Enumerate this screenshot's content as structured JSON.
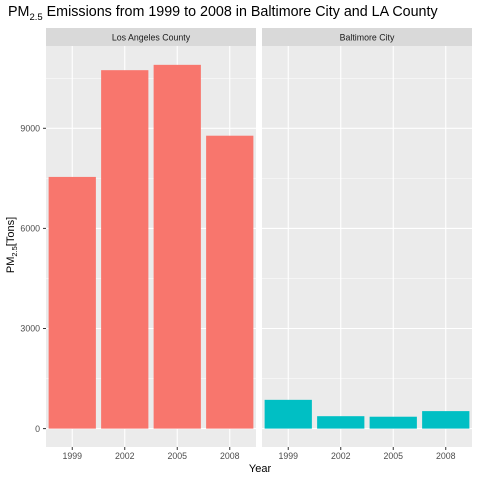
{
  "chart_data": {
    "type": "bar",
    "title": "PM2.5 Emissions from 1999 to 2008 in Baltimore City and LA County",
    "title_parts": {
      "base": "PM",
      "subscript": "2.5",
      "rest": " Emissions from 1999 to 2008 in Baltimore City and LA County"
    },
    "xlabel": "Year",
    "ylabel": "PM2.5[Tons]",
    "ylabel_parts": {
      "base": "PM",
      "subscript": "2.5",
      "rest": "[Tons]"
    },
    "categories": [
      "1999",
      "2002",
      "2005",
      "2008"
    ],
    "yticks": [
      0,
      3000,
      6000,
      9000
    ],
    "ylim": [
      0,
      11500
    ],
    "grid": true,
    "facets": [
      {
        "name": "Los Angeles County",
        "color": "#F8766D",
        "values": [
          7543,
          10742,
          10902,
          8778
        ]
      },
      {
        "name": "Baltimore City",
        "color": "#00BFC4",
        "values": [
          862,
          372,
          356,
          524
        ]
      }
    ]
  }
}
